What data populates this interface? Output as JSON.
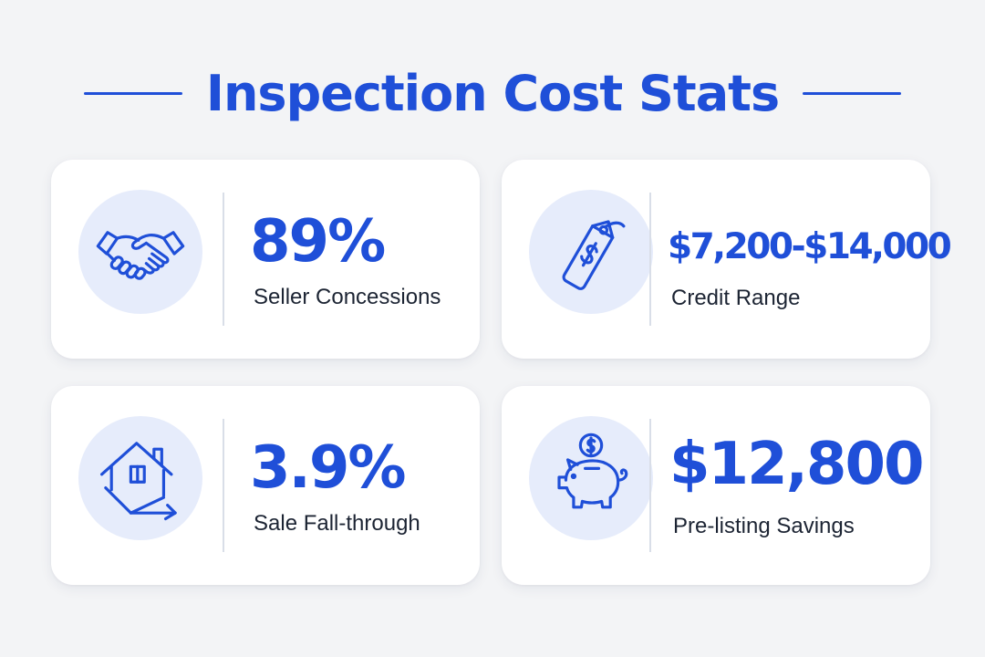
{
  "title": "Inspection Cost Stats",
  "accent_color": "#1f4fd8",
  "cards": [
    {
      "value": "89%",
      "label": "Seller Concessions",
      "icon": "handshake-icon"
    },
    {
      "value": "$7,200-$14,000",
      "label": "Credit Range",
      "icon": "price-tag-icon"
    },
    {
      "value": "3.9%",
      "label": "Sale Fall-through",
      "icon": "house-decline-icon"
    },
    {
      "value": "$12,800",
      "label": "Pre-listing Savings",
      "icon": "piggy-bank-icon"
    }
  ]
}
